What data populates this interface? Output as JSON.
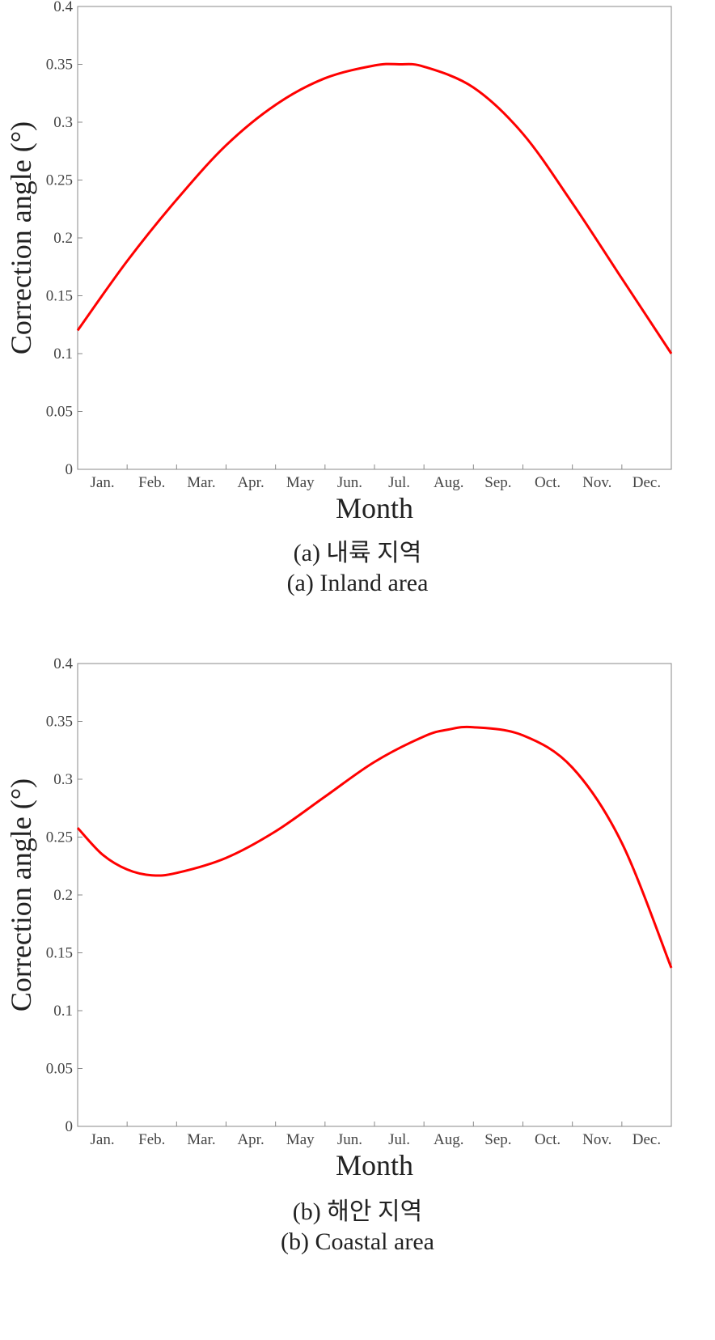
{
  "chart_data": [
    {
      "type": "line",
      "xlabel": "Month",
      "ylabel": "Correction angle (°)",
      "categories": [
        "Jan.",
        "Feb.",
        "Mar.",
        "Apr.",
        "May",
        "Jun.",
        "Jul.",
        "Aug.",
        "Sep.",
        "Oct.",
        "Nov.",
        "Dec."
      ],
      "xlim": [
        0,
        12
      ],
      "ylim": [
        0,
        0.4
      ],
      "yticks": [
        "0",
        "0.05",
        "0.1",
        "0.15",
        "0.2",
        "0.25",
        "0.3",
        "0.35",
        "0.4"
      ],
      "color": "#ff0000",
      "grid": false,
      "series": [
        {
          "x": [
            0,
            1,
            2,
            3,
            4,
            5,
            6,
            6.5,
            7,
            8,
            9,
            10,
            11,
            12
          ],
          "values": [
            0.12,
            0.18,
            0.233,
            0.28,
            0.315,
            0.338,
            0.349,
            0.35,
            0.348,
            0.33,
            0.29,
            0.23,
            0.165,
            0.1
          ]
        }
      ],
      "caption_ko": "(a) 내륙 지역",
      "caption_en": "(a) Inland area"
    },
    {
      "type": "line",
      "xlabel": "Month",
      "ylabel": "Correction angle (°)",
      "categories": [
        "Jan.",
        "Feb.",
        "Mar.",
        "Apr.",
        "May",
        "Jun.",
        "Jul.",
        "Aug.",
        "Sep.",
        "Oct.",
        "Nov.",
        "Dec."
      ],
      "xlim": [
        0,
        12
      ],
      "ylim": [
        0,
        0.4
      ],
      "yticks": [
        "0",
        "0.05",
        "0.1",
        "0.15",
        "0.2",
        "0.25",
        "0.3",
        "0.35",
        "0.4"
      ],
      "color": "#ff0000",
      "grid": false,
      "series": [
        {
          "x": [
            0,
            0.5,
            1,
            1.5,
            2,
            3,
            4,
            5,
            6,
            7,
            7.5,
            8,
            9,
            10,
            11,
            12
          ],
          "values": [
            0.258,
            0.235,
            0.222,
            0.217,
            0.219,
            0.232,
            0.255,
            0.285,
            0.315,
            0.337,
            0.343,
            0.345,
            0.338,
            0.31,
            0.245,
            0.137
          ]
        }
      ],
      "caption_ko": "(b) 해안 지역",
      "caption_en": "(b) Coastal area"
    }
  ]
}
